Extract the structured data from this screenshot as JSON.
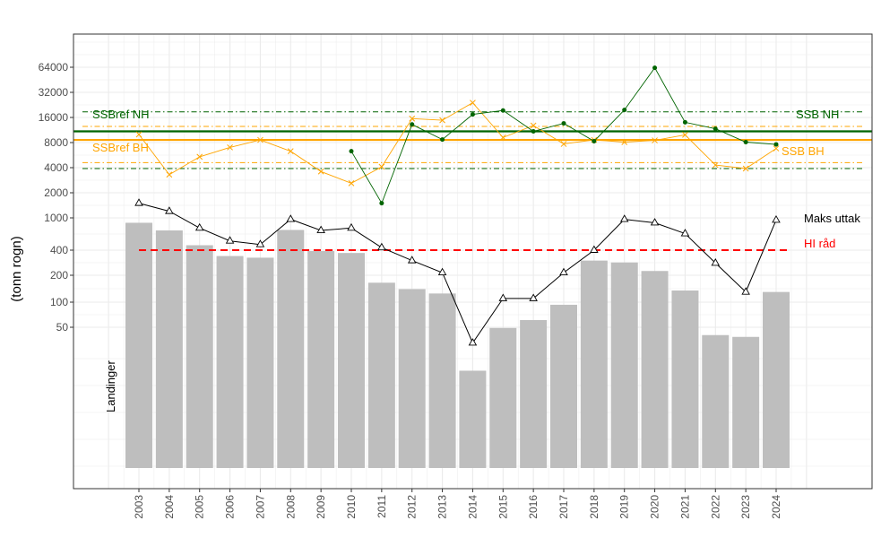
{
  "chart_data": {
    "type": "bar",
    "ylabel": "(tonn rogn)",
    "y_scale": "log (sqrt-compressed below 2000)",
    "y_ticks": [
      50,
      100,
      200,
      400,
      1000,
      2000,
      4000,
      8000,
      16000,
      32000,
      64000
    ],
    "y_tick_labels": [
      "50",
      "100",
      "200",
      "400",
      "1000",
      "2000",
      "4000",
      "8000",
      "16000",
      "32000",
      "64000"
    ],
    "categories": [
      "2003",
      "2004",
      "2005",
      "2006",
      "2007",
      "2008",
      "2009",
      "2010",
      "2011",
      "2012",
      "2013",
      "2014",
      "2015",
      "2016",
      "2017",
      "2018",
      "2019",
      "2020",
      "2021",
      "2022",
      "2023",
      "2024"
    ],
    "grid": true,
    "series": [
      {
        "name": "Landinger",
        "kind": "bar",
        "color": "#bebebe",
        "values": [
          870,
          700,
          460,
          340,
          325,
          710,
          390,
          370,
          165,
          140,
          125,
          14.5,
          49,
          61,
          93,
          300,
          285,
          225,
          135,
          40,
          38,
          130
        ]
      },
      {
        "name": "Maks uttak",
        "kind": "line",
        "marker": "triangle-open",
        "color": "#000000",
        "values": [
          1500,
          1200,
          750,
          520,
          470,
          960,
          700,
          750,
          430,
          300,
          215,
          32,
          110,
          110,
          215,
          400,
          960,
          870,
          640,
          280,
          130,
          940
        ]
      },
      {
        "name": "SSB BH",
        "kind": "line",
        "marker": "x",
        "color": "#ffa500",
        "values": [
          10000,
          3300,
          5400,
          7000,
          8600,
          6300,
          3600,
          2600,
          4100,
          15500,
          14800,
          24000,
          9200,
          12800,
          7700,
          8600,
          8100,
          8500,
          9900,
          4300,
          3900,
          6800
        ]
      },
      {
        "name": "SSB NH",
        "kind": "line",
        "marker": "point",
        "color": "#006400",
        "values": [
          null,
          null,
          null,
          null,
          null,
          null,
          null,
          6300,
          1500,
          13200,
          8700,
          17400,
          19400,
          10900,
          13600,
          8300,
          19700,
          63000,
          14000,
          11700,
          8100,
          7600
        ]
      }
    ],
    "reference_lines": [
      {
        "name": "SSBref NH",
        "value": 18700,
        "color": "#006400",
        "style": "dashdot"
      },
      {
        "name": "SSB NH",
        "value": 10900,
        "color": "#006400",
        "style": "solid"
      },
      {
        "name": "SSB NH lower",
        "value": 3900,
        "color": "#006400",
        "style": "dashdot"
      },
      {
        "name": "SSBref BH",
        "value": 12500,
        "color": "#ffa500",
        "style": "dashdot"
      },
      {
        "name": "SSB BH",
        "value": 8600,
        "color": "#ffa500",
        "style": "solid"
      },
      {
        "name": "SSB BH lower",
        "value": 4600,
        "color": "#ffa500",
        "style": "dashdot"
      },
      {
        "name": "HI råd",
        "value": 400,
        "color": "#ff0000",
        "style": "dashed"
      }
    ],
    "annotations": {
      "ssbref_nh": "SSBref NH",
      "ssb_nh": "SSB NH",
      "ssbref_bh": "SSBref BH",
      "ssb_bh": "SSB BH",
      "maks_uttak": "Maks uttak",
      "hi_rad": "HI råd",
      "landinger": "Landinger"
    },
    "colors": {
      "nh": "#006400",
      "bh": "#ffa500",
      "hi": "#ff0000",
      "bar": "#bebebe",
      "maks": "#000000"
    }
  }
}
